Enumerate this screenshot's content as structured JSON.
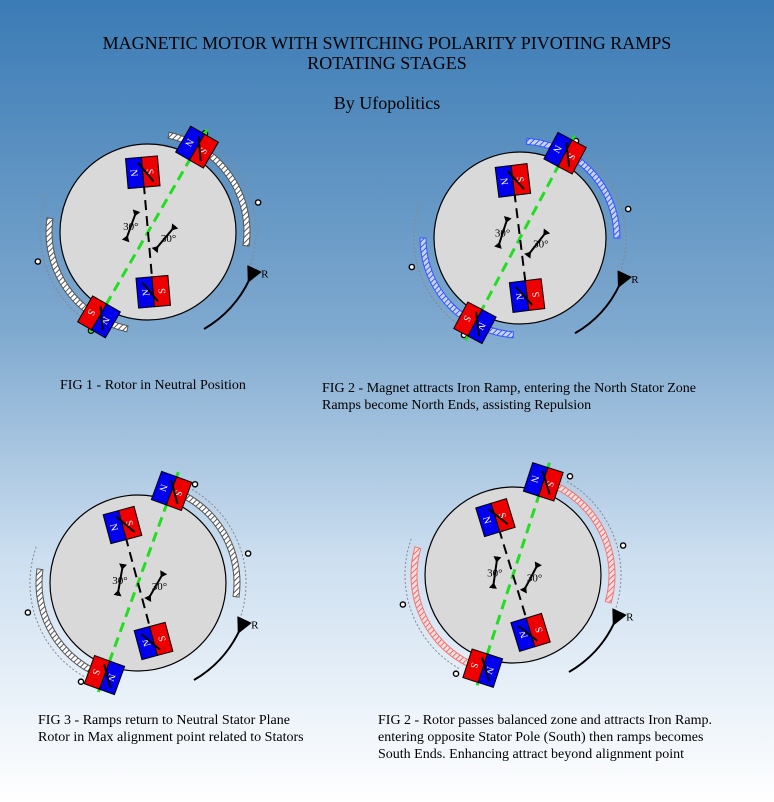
{
  "title": {
    "line1": "MAGNETIC MOTOR WITH SWITCHING POLARITY PIVOTING RAMPS",
    "line2": "ROTATING STAGES"
  },
  "byline": "By Ufopolitics",
  "colors": {
    "background_top": "#3b7bb5",
    "rotor_fill": "#d9d9d9",
    "magnet_north": "#0000ee",
    "magnet_south": "#ee0000",
    "alignment_line": "#22dd22",
    "ramp_neutral": "#555555",
    "ramp_north": "#3355ff",
    "ramp_south": "#ee7777"
  },
  "labels": {
    "north": "N",
    "south": "S",
    "angle": "30°",
    "rotation": "R"
  },
  "figures": [
    {
      "caption": [
        "FIG 1 - Rotor in Neutral Position"
      ],
      "ramp_state": "neutral",
      "rotor_angle_deg": 0,
      "ramp_tilt_deg": 0
    },
    {
      "caption": [
        "FIG 2 - Magnet attracts Iron Ramp, entering the North Stator Zone",
        "Ramps become North Ends, assisting Repulsion"
      ],
      "ramp_state": "north",
      "rotor_angle_deg": 0,
      "ramp_tilt_deg": -8
    },
    {
      "caption": [
        "FIG 3 - Ramps return to Neutral Stator Plane",
        "Rotor in Max alignment point related to Stators"
      ],
      "ramp_state": "neutral",
      "rotor_angle_deg": 0,
      "ramp_tilt_deg": 0
    },
    {
      "caption": [
        "FIG 2 - Rotor passes balanced zone and attracts Iron Ramp.",
        "entering opposite Stator Pole (South) then ramps becomes",
        "South Ends. Enhancing attract beyond alignment point"
      ],
      "ramp_state": "south",
      "rotor_angle_deg": 0,
      "ramp_tilt_deg": 8
    }
  ]
}
